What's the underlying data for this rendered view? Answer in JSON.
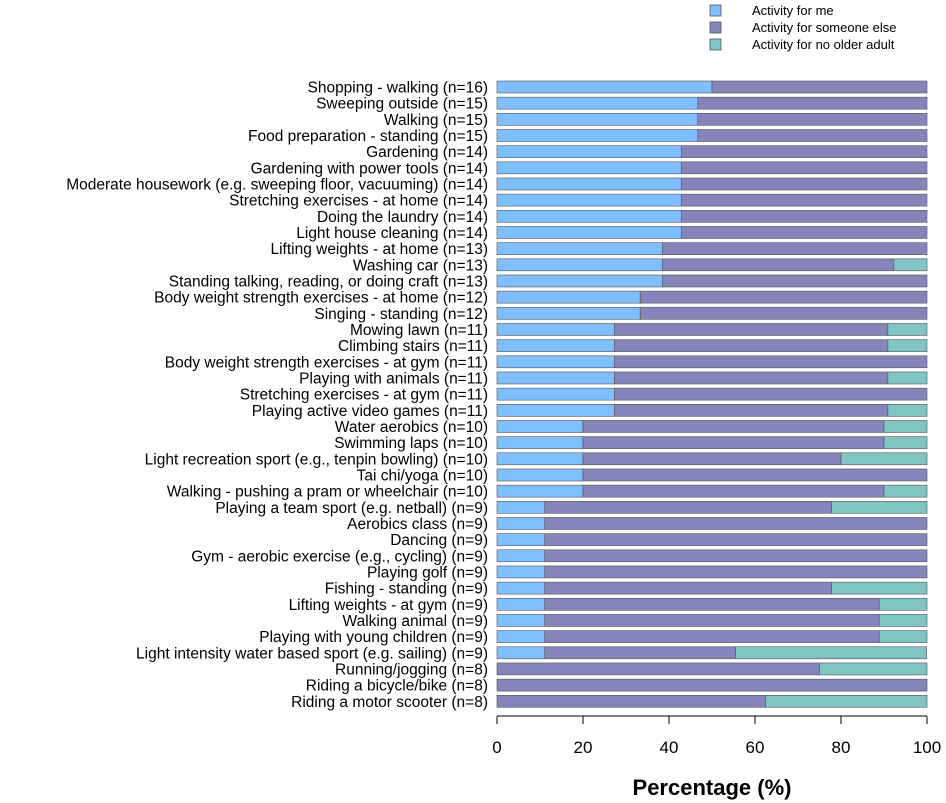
{
  "chart_data": {
    "type": "bar",
    "orientation": "horizontal",
    "stacked": true,
    "xlabel": "Percentage (%)",
    "xlim": [
      0,
      100
    ],
    "xticks": [
      0,
      20,
      40,
      60,
      80,
      100
    ],
    "legend_position": "top-right",
    "categories": [
      "Shopping - walking (n=16)",
      "Sweeping outside (n=15)",
      "Walking (n=15)",
      "Food preparation - standing (n=15)",
      "Gardening (n=14)",
      "Gardening with power tools (n=14)",
      "Moderate housework (e.g. sweeping floor, vacuuming) (n=14)",
      "Stretching exercises - at home (n=14)",
      "Doing the laundry (n=14)",
      "Light house cleaning (n=14)",
      "Lifting weights - at home (n=13)",
      "Washing car (n=13)",
      "Standing talking, reading, or doing craft (n=13)",
      "Body weight strength exercises - at home (n=12)",
      "Singing - standing (n=12)",
      "Mowing lawn (n=11)",
      "Climbing stairs (n=11)",
      "Body weight strength exercises - at gym (n=11)",
      "Playing with animals (n=11)",
      "Stretching exercises - at gym (n=11)",
      "Playing active video games (n=11)",
      "Water aerobics (n=10)",
      "Swimming laps (n=10)",
      "Light recreation sport (e.g., tenpin bowling) (n=10)",
      "Tai chi/yoga (n=10)",
      "Walking - pushing a pram or wheelchair (n=10)",
      "Playing a team sport (e.g. netball) (n=9)",
      "Aerobics class (n=9)",
      "Dancing (n=9)",
      "Gym - aerobic exercise (e.g., cycling) (n=9)",
      "Playing golf (n=9)",
      "Fishing - standing (n=9)",
      "Lifting weights - at gym (n=9)",
      "Walking animal (n=9)",
      "Playing with young children (n=9)",
      "Light intensity water based sport (e.g. sailing) (n=9)",
      "Running/jogging (n=8)",
      "Riding a bicycle/bike (n=8)",
      "Riding a motor scooter (n=8)"
    ],
    "series": [
      {
        "name": "Activity for me",
        "color": "#7fbfff",
        "values": [
          50,
          46.7,
          46.7,
          46.7,
          42.9,
          42.9,
          42.9,
          42.9,
          42.9,
          42.9,
          38.5,
          38.5,
          38.5,
          33.3,
          33.3,
          27.3,
          27.3,
          27.3,
          27.3,
          27.3,
          27.3,
          20,
          20,
          20,
          20,
          20,
          11.1,
          11.1,
          11.1,
          11.1,
          11.1,
          11.1,
          11.1,
          11.1,
          11.1,
          11.1,
          0,
          0,
          0
        ]
      },
      {
        "name": "Activity for someone else",
        "color": "#8585bb",
        "values": [
          50,
          53.3,
          53.3,
          53.3,
          57.1,
          57.1,
          57.1,
          57.1,
          57.1,
          57.1,
          61.5,
          53.8,
          61.5,
          66.7,
          66.7,
          63.6,
          63.6,
          72.7,
          63.6,
          72.7,
          63.6,
          70,
          70,
          60,
          80,
          70,
          66.7,
          88.9,
          88.9,
          88.9,
          88.9,
          66.7,
          77.8,
          77.8,
          77.8,
          44.4,
          75,
          100,
          62.5
        ]
      },
      {
        "name": "Activity for no older adult",
        "color": "#80c4c4",
        "values": [
          0,
          0,
          0,
          0,
          0,
          0,
          0,
          0,
          0,
          0,
          0,
          7.7,
          0,
          0,
          0,
          9.1,
          9.1,
          0,
          9.1,
          0,
          9.1,
          10,
          10,
          20,
          0,
          10,
          22.2,
          0,
          0,
          0,
          0,
          22.2,
          11.1,
          11.1,
          11.1,
          44.4,
          25,
          0,
          37.5
        ]
      }
    ]
  }
}
